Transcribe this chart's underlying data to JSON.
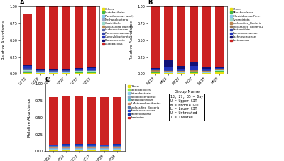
{
  "panel_A": {
    "title": "A",
    "x_labels": [
      "UT13",
      "UT18",
      "UT27",
      "UT27",
      "UT35",
      "UT35"
    ],
    "legend_labels": [
      "Others",
      "Lactobacillales",
      "Pseudomonas family",
      "Methanobacteria",
      "Clostridiales",
      "unclassified_Bacteria",
      "Lachnospiraceae",
      "Ruminococcaceae",
      "Campylobacterota",
      "Proteobacteria",
      "Lactobacillus"
    ],
    "colors": [
      "#e8e010",
      "#44bb44",
      "#88ccee",
      "#99aacc",
      "#99ddcc",
      "#bb8855",
      "#5566aa",
      "#3344aa",
      "#2233bb",
      "#111177",
      "#cc2222"
    ],
    "data": [
      [
        0.015,
        0.01,
        0.01,
        0.01,
        0.015,
        0.02
      ],
      [
        0.01,
        0.005,
        0.005,
        0.005,
        0.01,
        0.005
      ],
      [
        0.015,
        0.008,
        0.008,
        0.008,
        0.008,
        0.008
      ],
      [
        0.008,
        0.005,
        0.005,
        0.005,
        0.005,
        0.005
      ],
      [
        0.01,
        0.005,
        0.005,
        0.005,
        0.005,
        0.005
      ],
      [
        0.01,
        0.008,
        0.008,
        0.008,
        0.008,
        0.008
      ],
      [
        0.01,
        0.008,
        0.008,
        0.008,
        0.008,
        0.008
      ],
      [
        0.01,
        0.008,
        0.008,
        0.008,
        0.008,
        0.008
      ],
      [
        0.03,
        0.01,
        0.01,
        0.01,
        0.01,
        0.025
      ],
      [
        0.01,
        0.008,
        0.008,
        0.008,
        0.008,
        0.008
      ],
      [
        0.762,
        0.923,
        0.923,
        0.933,
        0.923,
        0.898
      ]
    ]
  },
  "panel_B": {
    "title": "B",
    "x_labels": [
      "MT13",
      "MI13",
      "MT27",
      "MI27",
      "MT35",
      "MI35"
    ],
    "legend_labels": [
      "Others",
      "Mitochondriota",
      "Clostridiaceae Fam.",
      "Synergistota",
      "unclassified_Bacteria",
      "unclassified_Bacteria2",
      "Bacteroidota",
      "Ruminococcaceae",
      "Lachnospiraceae",
      "Lactococcus"
    ],
    "colors": [
      "#e8e010",
      "#44bb44",
      "#88ccee",
      "#99ddcc",
      "#bb8855",
      "#997755",
      "#3344aa",
      "#2233bb",
      "#111177",
      "#cc2222"
    ],
    "data": [
      [
        0.015,
        0.01,
        0.01,
        0.015,
        0.01,
        0.035
      ],
      [
        0.01,
        0.008,
        0.008,
        0.008,
        0.008,
        0.008
      ],
      [
        0.008,
        0.008,
        0.008,
        0.008,
        0.008,
        0.008
      ],
      [
        0.008,
        0.008,
        0.008,
        0.008,
        0.008,
        0.008
      ],
      [
        0.008,
        0.008,
        0.008,
        0.008,
        0.008,
        0.008
      ],
      [
        0.008,
        0.008,
        0.008,
        0.008,
        0.008,
        0.008
      ],
      [
        0.008,
        0.01,
        0.01,
        0.01,
        0.008,
        0.008
      ],
      [
        0.01,
        0.035,
        0.02,
        0.06,
        0.015,
        0.01
      ],
      [
        0.015,
        0.12,
        0.04,
        0.06,
        0.025,
        0.015
      ],
      [
        0.91,
        0.785,
        0.88,
        0.815,
        0.91,
        0.892
      ]
    ]
  },
  "panel_C": {
    "title": "C",
    "x_labels": [
      "UT13",
      "LT13",
      "CT27",
      "LT27",
      "UT35",
      "LT35"
    ],
    "legend_labels": [
      "Others",
      "Lactobacillales",
      "Enterobacteria",
      "Bifidobacteriaceae",
      "Faecalibacterium",
      "1-Methanobrevibacter",
      "unclassified_Bacteria",
      "Ruminococcaceae",
      "Bacteroidaceae",
      "Firmicutes"
    ],
    "colors": [
      "#e8e010",
      "#88ee44",
      "#88ccee",
      "#88aacc",
      "#44cccc",
      "#cc8866",
      "#5577aa",
      "#2244cc",
      "#1133aa",
      "#cc2222"
    ],
    "data": [
      [
        0.015,
        0.015,
        0.015,
        0.015,
        0.015,
        0.015
      ],
      [
        0.01,
        0.01,
        0.01,
        0.01,
        0.01,
        0.01
      ],
      [
        0.01,
        0.01,
        0.01,
        0.01,
        0.01,
        0.01
      ],
      [
        0.01,
        0.01,
        0.01,
        0.01,
        0.01,
        0.01
      ],
      [
        0.015,
        0.01,
        0.01,
        0.01,
        0.01,
        0.01
      ],
      [
        0.01,
        0.01,
        0.01,
        0.01,
        0.01,
        0.01
      ],
      [
        0.01,
        0.01,
        0.01,
        0.01,
        0.01,
        0.01
      ],
      [
        0.01,
        0.02,
        0.02,
        0.02,
        0.015,
        0.02
      ],
      [
        0.01,
        0.01,
        0.01,
        0.01,
        0.01,
        0.01
      ],
      [
        0.7,
        0.71,
        0.71,
        0.695,
        0.7,
        0.695
      ]
    ]
  },
  "key_text": [
    "13, 27, 35 = Day",
    "U = Upper GIT",
    "M = Middle GIT",
    "L = Lower GIT",
    "U = Untreated",
    "T = Treated"
  ],
  "ylabel": "Relative Abundance",
  "xlabel": "Group Name"
}
